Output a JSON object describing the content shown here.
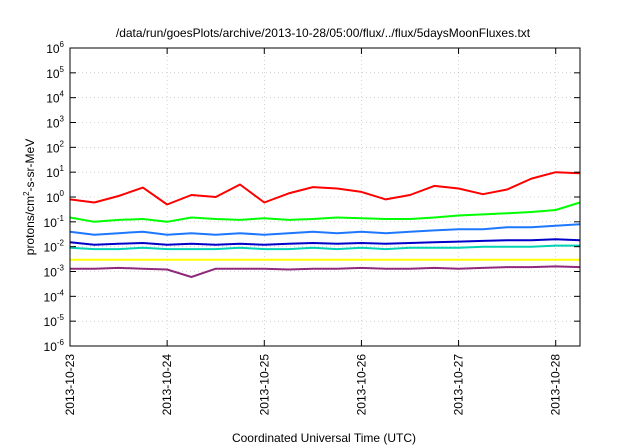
{
  "chart_data": {
    "type": "line",
    "title": "/data/run/goesPlots/archive/2013-10-28/05:00/flux/../flux/5daysMoonFluxes.txt",
    "xlabel": "Coordinated Universal Time (UTC)",
    "ylabel": {
      "base": "protons/cm",
      "sup": "2",
      "rest": "-s-sr-MeV"
    },
    "y_scale": "log",
    "ylim_exp": [
      -6,
      6
    ],
    "y_tick_base": "10",
    "y_ticks": [
      {
        "sup": "-6",
        "exp": -6
      },
      {
        "sup": "-5",
        "exp": -5
      },
      {
        "sup": "-4",
        "exp": -4
      },
      {
        "sup": "-3",
        "exp": -3
      },
      {
        "sup": "-2",
        "exp": -2
      },
      {
        "sup": "-1",
        "exp": -1
      },
      {
        "sup": "0",
        "exp": 0
      },
      {
        "sup": "1",
        "exp": 1
      },
      {
        "sup": "2",
        "exp": 2
      },
      {
        "sup": "3",
        "exp": 3
      },
      {
        "sup": "4",
        "exp": 4
      },
      {
        "sup": "5",
        "exp": 5
      },
      {
        "sup": "6",
        "exp": 6
      }
    ],
    "x_unit": "day",
    "xlim": [
      0,
      5.25
    ],
    "x_ticks": [
      {
        "label": "2013-10-23",
        "day": 0
      },
      {
        "label": "2013-10-24",
        "day": 1
      },
      {
        "label": "2013-10-25",
        "day": 2
      },
      {
        "label": "2013-10-26",
        "day": 3
      },
      {
        "label": "2013-10-27",
        "day": 4
      },
      {
        "label": "2013-10-28",
        "day": 5
      }
    ],
    "grid": true,
    "series": [
      {
        "color": "#ff0000",
        "x": [
          0,
          0.25,
          0.5,
          0.75,
          1,
          1.25,
          1.5,
          1.75,
          2,
          2.25,
          2.5,
          2.75,
          3,
          3.25,
          3.5,
          3.75,
          4,
          4.25,
          4.5,
          4.75,
          5,
          5.25
        ],
        "y": [
          0.8,
          0.6,
          1.1,
          2.4,
          0.5,
          1.2,
          1.0,
          3.2,
          0.6,
          1.4,
          2.5,
          2.2,
          1.6,
          0.8,
          1.2,
          2.8,
          2.2,
          1.3,
          2.0,
          5.5,
          10,
          9
        ]
      },
      {
        "color": "#00ff00",
        "x": [
          0,
          0.25,
          0.5,
          0.75,
          1,
          1.25,
          1.5,
          1.75,
          2,
          2.25,
          2.5,
          2.75,
          3,
          3.25,
          3.5,
          3.75,
          4,
          4.25,
          4.5,
          4.75,
          5,
          5.25
        ],
        "y": [
          0.15,
          0.1,
          0.12,
          0.13,
          0.1,
          0.15,
          0.13,
          0.12,
          0.14,
          0.12,
          0.13,
          0.15,
          0.14,
          0.13,
          0.13,
          0.15,
          0.18,
          0.2,
          0.22,
          0.25,
          0.3,
          0.6
        ]
      },
      {
        "color": "#1e78ff",
        "x": [
          0,
          0.25,
          0.5,
          0.75,
          1,
          1.25,
          1.5,
          1.75,
          2,
          2.25,
          2.5,
          2.75,
          3,
          3.25,
          3.5,
          3.75,
          4,
          4.25,
          4.5,
          4.75,
          5,
          5.25
        ],
        "y": [
          0.04,
          0.03,
          0.035,
          0.04,
          0.03,
          0.035,
          0.03,
          0.035,
          0.03,
          0.035,
          0.04,
          0.035,
          0.04,
          0.035,
          0.04,
          0.045,
          0.05,
          0.05,
          0.06,
          0.06,
          0.07,
          0.08
        ]
      },
      {
        "color": "#0000c8",
        "x": [
          0,
          0.25,
          0.5,
          0.75,
          1,
          1.25,
          1.5,
          1.75,
          2,
          2.25,
          2.5,
          2.75,
          3,
          3.25,
          3.5,
          3.75,
          4,
          4.25,
          4.5,
          4.75,
          5,
          5.25
        ],
        "y": [
          0.015,
          0.012,
          0.013,
          0.014,
          0.012,
          0.013,
          0.012,
          0.013,
          0.012,
          0.013,
          0.014,
          0.013,
          0.014,
          0.013,
          0.014,
          0.015,
          0.016,
          0.017,
          0.018,
          0.018,
          0.02,
          0.018
        ]
      },
      {
        "color": "#00d2b4",
        "x": [
          0,
          0.25,
          0.5,
          0.75,
          1,
          1.25,
          1.5,
          1.75,
          2,
          2.25,
          2.5,
          2.75,
          3,
          3.25,
          3.5,
          3.75,
          4,
          4.25,
          4.5,
          4.75,
          5,
          5.25
        ],
        "y": [
          0.009,
          0.008,
          0.008,
          0.009,
          0.008,
          0.008,
          0.008,
          0.009,
          0.008,
          0.008,
          0.009,
          0.008,
          0.009,
          0.008,
          0.009,
          0.009,
          0.009,
          0.01,
          0.01,
          0.01,
          0.011,
          0.011
        ]
      },
      {
        "color": "#ffff00",
        "x": [
          0,
          0.25,
          0.5,
          0.75,
          1,
          1.25,
          1.5,
          1.75,
          2,
          2.25,
          2.5,
          2.75,
          3,
          3.25,
          3.5,
          3.75,
          4,
          4.25,
          4.5,
          4.75,
          5,
          5.25
        ],
        "y": [
          0.003,
          0.003,
          0.003,
          0.003,
          0.003,
          0.003,
          0.003,
          0.003,
          0.003,
          0.003,
          0.003,
          0.003,
          0.003,
          0.003,
          0.003,
          0.003,
          0.003,
          0.003,
          0.003,
          0.003,
          0.003,
          0.003
        ]
      },
      {
        "color": "#902a7c",
        "x": [
          0,
          0.25,
          0.5,
          0.75,
          1,
          1.25,
          1.5,
          1.75,
          2,
          2.25,
          2.5,
          2.75,
          3,
          3.25,
          3.5,
          3.75,
          4,
          4.25,
          4.5,
          4.75,
          5,
          5.25
        ],
        "y": [
          0.0013,
          0.0013,
          0.0014,
          0.0013,
          0.0012,
          0.0006,
          0.0013,
          0.0013,
          0.0013,
          0.0012,
          0.0013,
          0.0013,
          0.0014,
          0.0013,
          0.0013,
          0.0014,
          0.0013,
          0.0014,
          0.0015,
          0.0015,
          0.0016,
          0.0015
        ]
      }
    ]
  }
}
